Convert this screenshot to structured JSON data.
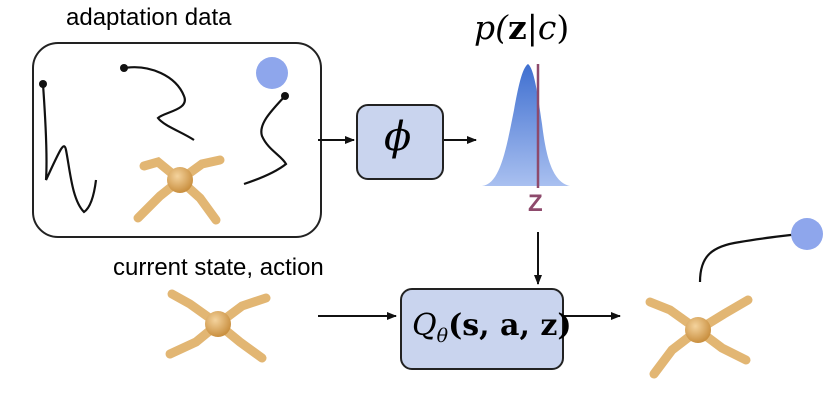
{
  "labels": {
    "adaptation_data": "adaptation data",
    "current_state_action": "current state, action"
  },
  "math": {
    "prior": "p(z|c)",
    "prior_parts": {
      "p": "p(",
      "z": "z",
      "bar": "|",
      "c": "c",
      "close": ")"
    },
    "encoder": "ϕ",
    "z_marker": "Z",
    "q_function": "Qθ(s, a, z)",
    "q_parts": {
      "Q": "Q",
      "theta": "θ",
      "args": "(s, a, z)"
    }
  },
  "colors": {
    "box_fill": "#c9d4ee",
    "robot": "#e2b673",
    "robot_shade": "#c98f3f",
    "goal": "#8ea6ec",
    "distribution": "#5b82d4",
    "z_marker": "#8e4a6c",
    "stroke": "#222222"
  },
  "icons": [
    "quadruped-robot-icon",
    "goal-dot-icon",
    "trajectory-icon",
    "gaussian-distribution-icon",
    "arrow-icon"
  ]
}
